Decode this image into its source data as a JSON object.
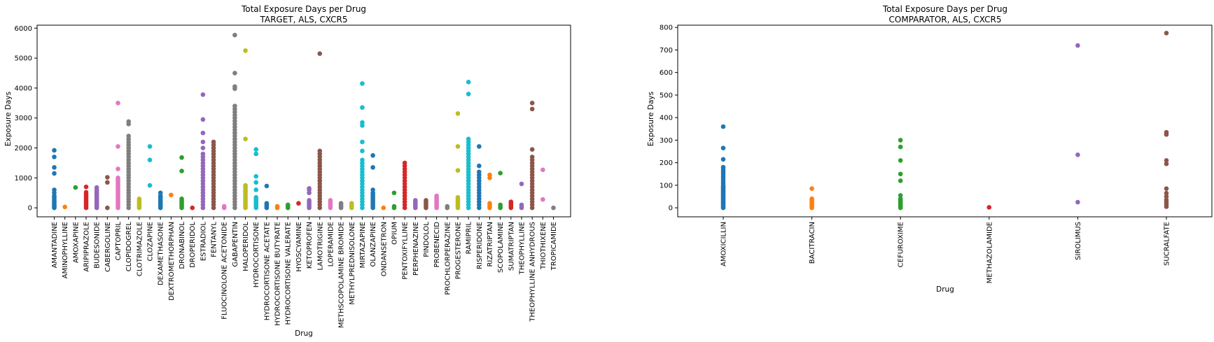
{
  "chart_data": [
    {
      "type": "scatter",
      "title": "Total Exposure Days per Drug",
      "subtitle": "TARGET, ALS, CXCR5",
      "xlabel": "Drug",
      "ylabel": "Exposure Days",
      "ylim": [
        -300,
        6100
      ],
      "yticks": [
        0,
        1000,
        2000,
        3000,
        4000,
        5000,
        6000
      ],
      "grid": false,
      "categories": [
        "AMANTADINE",
        "AMINOPHYLLINE",
        "AMOXAPINE",
        "ARIPIPRAZOLE",
        "BUDESONIDE",
        "CABERGOLINE",
        "CAPTOPRIL",
        "CLOPIDOGREL",
        "CLOTRIMAZOLE",
        "CLOZAPINE",
        "DEXAMETHASONE",
        "DEXTROMETHORPHAN",
        "DRONABINOL",
        "DROPERIDOL",
        "ESTRADIOL",
        "FENTANYL",
        "FLUOCINOLONE ACETONIDE",
        "GABAPENTIN",
        "HALOPERIDOL",
        "HYDROCORTISONE",
        "HYDROCORTISONE ACETATE",
        "HYDROCORTISONE BUTYRATE",
        "HYDROCORTISONE VALERATE",
        "HYOSCYAMINE",
        "KETOPROFEN",
        "LAMOTRIGINE",
        "LOPERAMIDE",
        "METHSCOPOLAMINE BROMIDE",
        "METHYLPREDNISOLONE",
        "MIRTAZAPINE",
        "OLANZAPINE",
        "ONDANSETRON",
        "OPIUM",
        "PENTOXIFYLLINE",
        "PERPHENAZINE",
        "PINDOLOL",
        "PROBENECID",
        "PROCHLORPERAZINE",
        "PROGESTERONE",
        "RAMIPRIL",
        "RISPERIDONE",
        "RIZATRIPTAN",
        "SCOPOLAMINE",
        "SUMATRIPTAN",
        "THEOPHYLLINE",
        "THEOPHYLLINE ANHYDROUS",
        "THIOTHIXENE",
        "TROPICAMIDE"
      ],
      "series": [
        {
          "values": [
            [
              0,
              30,
              60,
              100,
              150,
              200,
              250,
              300,
              350,
              400,
              500,
              600
            ],
            [
              1150,
              1350,
              1700,
              1920
            ]
          ]
        },
        {
          "values": [
            [
              30
            ]
          ]
        },
        {
          "values": [
            [
              680
            ]
          ]
        },
        {
          "values": [
            [
              0,
              50,
              100,
              150,
              200,
              250,
              300,
              350,
              400,
              450,
              520
            ],
            [
              700
            ]
          ]
        },
        {
          "values": [
            [
              0,
              50,
              100,
              150,
              200,
              250,
              300,
              350,
              400,
              450,
              500,
              550,
              600,
              680
            ]
          ]
        },
        {
          "values": [
            [
              0,
              850,
              1020
            ]
          ]
        },
        {
          "values": [
            [
              0,
              50,
              100,
              150,
              200,
              250,
              300,
              350,
              400,
              450,
              500,
              550,
              600,
              650,
              700,
              750,
              800,
              850,
              900,
              950,
              1000
            ],
            [
              1300,
              2050,
              3500
            ]
          ]
        },
        {
          "values": [
            [
              0,
              100,
              200,
              300,
              400,
              500,
              600,
              700,
              800,
              900,
              1000,
              1100,
              1200,
              1300,
              1400,
              1500,
              1600,
              1700,
              1800,
              1900,
              2000,
              2100,
              2200,
              2300,
              2400
            ],
            [
              2800,
              2880
            ]
          ]
        },
        {
          "values": [
            [
              0,
              50,
              100,
              150,
              200,
              250,
              300
            ]
          ]
        },
        {
          "values": [
            [
              750,
              1600,
              2050
            ]
          ]
        },
        {
          "values": [
            [
              0,
              50,
              100,
              150,
              200,
              250,
              300,
              350,
              400,
              500
            ]
          ]
        },
        {
          "values": [
            [
              430
            ]
          ]
        },
        {
          "values": [
            [
              0,
              50,
              100,
              150,
              200,
              250,
              300
            ],
            [
              1230,
              1680
            ]
          ]
        },
        {
          "values": [
            [
              0
            ]
          ]
        },
        {
          "values": [
            [
              0,
              100,
              200,
              300,
              400,
              500,
              600,
              700,
              800,
              900,
              1000,
              1100,
              1200,
              1300,
              1400,
              1500,
              1600,
              1700,
              1800
            ],
            [
              2000,
              2200,
              2500,
              2950,
              3780
            ]
          ]
        },
        {
          "values": [
            [
              0,
              100,
              200,
              300,
              400,
              500,
              600,
              700,
              800,
              900,
              1000,
              1100,
              1200,
              1300,
              1400,
              1500,
              1600,
              1700,
              1800,
              1900,
              2000,
              2100,
              2200
            ]
          ]
        },
        {
          "values": [
            [
              0,
              50
            ]
          ]
        },
        {
          "values": [
            [
              0,
              100,
              200,
              300,
              400,
              500,
              600,
              700,
              800,
              900,
              1000,
              1100,
              1200,
              1300,
              1400,
              1500,
              1600,
              1700,
              1800,
              1900,
              2000,
              2100,
              2200,
              2300,
              2400,
              2500,
              2600,
              2700,
              2800,
              2900,
              3000,
              3100,
              3200,
              3300,
              3400
            ],
            [
              3980,
              4050,
              4500,
              5770
            ]
          ]
        },
        {
          "values": [
            [
              0,
              50,
              100,
              150,
              200,
              250,
              300,
              350,
              400,
              450,
              500,
              550,
              600,
              650,
              700,
              750
            ],
            [
              2300,
              5250
            ]
          ]
        },
        {
          "values": [
            [
              0,
              50,
              100,
              150,
              200,
              250,
              300,
              350
            ],
            [
              600,
              850,
              1050,
              1800,
              1950
            ]
          ]
        },
        {
          "values": [
            [
              0,
              50,
              100,
              150,
              730
            ]
          ]
        },
        {
          "values": [
            [
              0,
              50
            ]
          ]
        },
        {
          "values": [
            [
              0,
              50,
              100
            ]
          ]
        },
        {
          "values": [
            [
              150
            ]
          ]
        },
        {
          "values": [
            [
              0,
              50,
              100,
              150,
              200,
              250,
              500,
              600,
              650
            ]
          ]
        },
        {
          "values": [
            [
              0,
              100,
              200,
              300,
              400,
              500,
              600,
              700,
              800,
              900,
              1000,
              1100,
              1200,
              1300,
              1400,
              1500,
              1600,
              1700,
              1800,
              1900
            ],
            [
              5150
            ]
          ]
        },
        {
          "values": [
            [
              0,
              50,
              100,
              150,
              200,
              250
            ]
          ]
        },
        {
          "values": [
            [
              0,
              50,
              100,
              150
            ]
          ]
        },
        {
          "values": [
            [
              0,
              50,
              100,
              150
            ]
          ]
        },
        {
          "values": [
            [
              0,
              100,
              200,
              300,
              400,
              500,
              600,
              700,
              800,
              900,
              1000,
              1100,
              1200,
              1300,
              1400,
              1500,
              1600
            ],
            [
              1900,
              2200,
              2750,
              2850,
              3350,
              4150
            ]
          ]
        },
        {
          "values": [
            [
              0,
              50,
              100,
              150,
              200,
              250,
              300,
              350,
              400,
              450,
              500,
              600
            ],
            [
              1350,
              1750
            ]
          ]
        },
        {
          "values": [
            [
              0
            ]
          ]
        },
        {
          "values": [
            [
              0,
              50,
              500
            ]
          ]
        },
        {
          "values": [
            [
              0,
              100,
              200,
              300,
              400,
              500,
              600,
              700,
              800,
              900,
              1000,
              1100,
              1200,
              1300,
              1400,
              1500
            ]
          ]
        },
        {
          "values": [
            [
              0,
              50,
              100,
              150,
              200,
              250
            ]
          ]
        },
        {
          "values": [
            [
              0,
              50,
              100,
              150,
              200,
              250
            ]
          ]
        },
        {
          "values": [
            [
              0,
              50,
              100,
              150,
              200,
              250,
              300,
              350,
              400
            ]
          ]
        },
        {
          "values": [
            [
              0,
              50
            ]
          ]
        },
        {
          "values": [
            [
              0,
              50,
              100,
              150,
              200,
              250,
              300,
              350
            ],
            [
              1250,
              2050,
              3150
            ]
          ]
        },
        {
          "values": [
            [
              0,
              100,
              200,
              300,
              400,
              500,
              600,
              700,
              800,
              900,
              1000,
              1100,
              1200,
              1300,
              1400,
              1500,
              1600,
              1700,
              1800,
              1900,
              2000,
              2100,
              2200
            ],
            [
              2300,
              3800,
              4200
            ]
          ]
        },
        {
          "values": [
            [
              0,
              100,
              200,
              300,
              400,
              500,
              600,
              700,
              800,
              900,
              1000,
              1100,
              1200
            ],
            [
              1400,
              2050
            ]
          ]
        },
        {
          "values": [
            [
              0,
              50,
              100,
              150,
              1000,
              1100
            ]
          ]
        },
        {
          "values": [
            [
              0,
              50,
              100,
              1160
            ]
          ]
        },
        {
          "values": [
            [
              0,
              50,
              100,
              150,
              200
            ]
          ]
        },
        {
          "values": [
            [
              0,
              50,
              100,
              800
            ]
          ]
        },
        {
          "values": [
            [
              0,
              100,
              200,
              300,
              400,
              500,
              600,
              700,
              800,
              900,
              1000,
              1100,
              1200,
              1300,
              1400,
              1500,
              1600,
              1700
            ],
            [
              1950,
              3300,
              3500
            ]
          ]
        },
        {
          "values": [
            [
              280,
              1270
            ]
          ]
        },
        {
          "values": [
            [
              0
            ]
          ]
        }
      ]
    },
    {
      "type": "scatter",
      "title": "Total Exposure Days per Drug",
      "subtitle": "COMPARATOR, ALS, CXCR5",
      "xlabel": "Drug",
      "ylabel": "Exposure Days",
      "ylim": [
        -40,
        810
      ],
      "yticks": [
        0,
        100,
        200,
        300,
        400,
        500,
        600,
        700,
        800
      ],
      "grid": false,
      "categories": [
        "AMOXICILLIN",
        "BACITRACIN",
        "CEFUROXIME",
        "METHAZOLAMIDE",
        "SIROLIMUS",
        "SUCRALFATE"
      ],
      "series": [
        {
          "values": [
            [
              0,
              5,
              10,
              15,
              20,
              25,
              30,
              35,
              40,
              45,
              50,
              55,
              60,
              65,
              70,
              75,
              80,
              85,
              90,
              95,
              100,
              110,
              120,
              130,
              140,
              150,
              160,
              170,
              180,
              215,
              265,
              360
            ]
          ]
        },
        {
          "values": [
            [
              0,
              5,
              10,
              15,
              20,
              25,
              30,
              35,
              40,
              85
            ]
          ]
        },
        {
          "values": [
            [
              0,
              5,
              10,
              15,
              20,
              25,
              30,
              35,
              40,
              55,
              120,
              150,
              210,
              270,
              300
            ]
          ]
        },
        {
          "values": [
            [
              2
            ]
          ]
        },
        {
          "values": [
            [
              25,
              235,
              720
            ]
          ]
        },
        {
          "values": [
            [
              5,
              15,
              25,
              35,
              50,
              65,
              85,
              195,
              210,
              325,
              335,
              775
            ]
          ]
        }
      ]
    }
  ],
  "colors": [
    "#1f77b4",
    "#ff7f0e",
    "#2ca02c",
    "#d62728",
    "#9467bd",
    "#8c564b",
    "#e377c2",
    "#7f7f7f",
    "#bcbd22",
    "#17becf"
  ]
}
